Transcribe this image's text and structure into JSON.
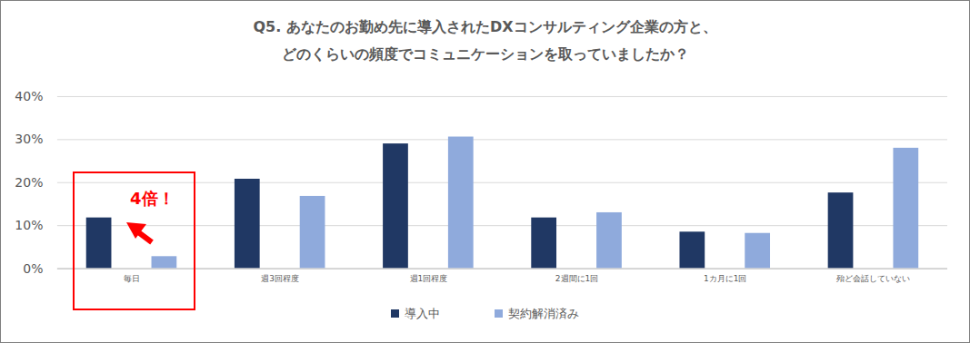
{
  "chart_data": {
    "type": "bar",
    "title": "Q5. あなたのお勤め先に導入されたDXコンサルティング企業の方と、\nどのくらいの頻度でコミュニケーションを取っていましたか？",
    "categories": [
      "毎日",
      "週3回程度",
      "週1回程度",
      "2週間に1回",
      "1カ月に1回",
      "殆ど会話していない"
    ],
    "series": [
      {
        "name": "導入中",
        "color": "#203864",
        "values": [
          11.8,
          20.8,
          29.0,
          11.8,
          8.5,
          17.6
        ]
      },
      {
        "name": "契約解消済み",
        "color": "#8faadc",
        "values": [
          2.8,
          16.8,
          30.6,
          13.0,
          8.2,
          28.0
        ]
      }
    ],
    "ylim": [
      0,
      40
    ],
    "yticks": [
      {
        "value": 0,
        "label": "0%"
      },
      {
        "value": 10,
        "label": "10%"
      },
      {
        "value": 20,
        "label": "20%"
      },
      {
        "value": 30,
        "label": "30%"
      },
      {
        "value": 40,
        "label": "40%"
      }
    ],
    "grid": true,
    "legend": "bottom",
    "annotations": [
      {
        "text": "4倍！",
        "color": "#ff0000"
      }
    ]
  }
}
